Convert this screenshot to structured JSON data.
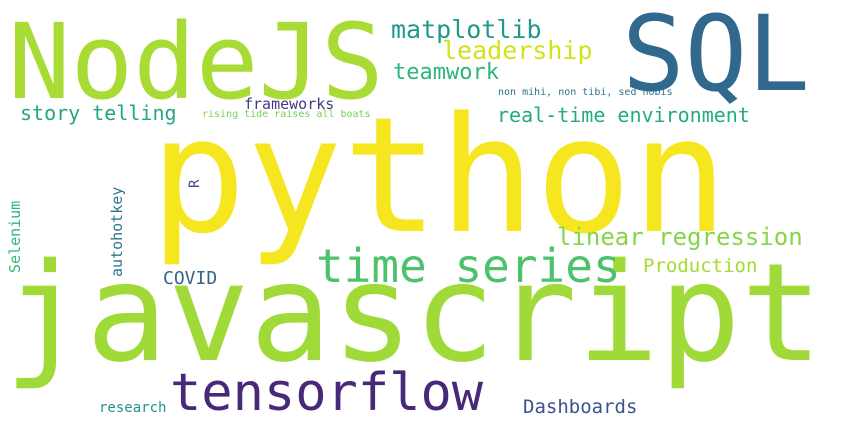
{
  "words": {
    "python": {
      "text": "python",
      "color": "#f6e620"
    },
    "javascript": {
      "text": "javascript",
      "color": "#a0da39"
    },
    "nodejs": {
      "text": "NodeJS",
      "color": "#a8db34"
    },
    "sql": {
      "text": "SQL",
      "color": "#30688e"
    },
    "tensorflow": {
      "text": "tensorflow",
      "color": "#482979"
    },
    "time_series": {
      "text": "time series",
      "color": "#4cc26c"
    },
    "matplotlib": {
      "text": "matplotlib",
      "color": "#1f9a8a"
    },
    "leadership": {
      "text": "leadership",
      "color": "#d2e21b"
    },
    "teamwork": {
      "text": "teamwork",
      "color": "#2fb47c"
    },
    "story_telling": {
      "text": "story telling",
      "color": "#22a785"
    },
    "frameworks": {
      "text": "frameworks",
      "color": "#443a83"
    },
    "rising_tide": {
      "text": "rising tide raises all boats",
      "color": "#75d054"
    },
    "non_mihi": {
      "text": "non mihi, non tibi, sed nobis",
      "color": "#2c728e"
    },
    "real_time": {
      "text": "real-time environment",
      "color": "#25ab82"
    },
    "linear_regression": {
      "text": "linear regression",
      "color": "#86d549"
    },
    "production": {
      "text": "Production",
      "color": "#a5db36"
    },
    "covid": {
      "text": "COVID",
      "color": "#31668e"
    },
    "r": {
      "text": "R",
      "color": "#3e4989"
    },
    "autohotkey": {
      "text": "autohotkey",
      "color": "#2a788e"
    },
    "selenium": {
      "text": "Selenium",
      "color": "#33b67a"
    },
    "research": {
      "text": "research",
      "color": "#1f958b"
    },
    "dashboards": {
      "text": "Dashboards",
      "color": "#3b528b"
    }
  }
}
